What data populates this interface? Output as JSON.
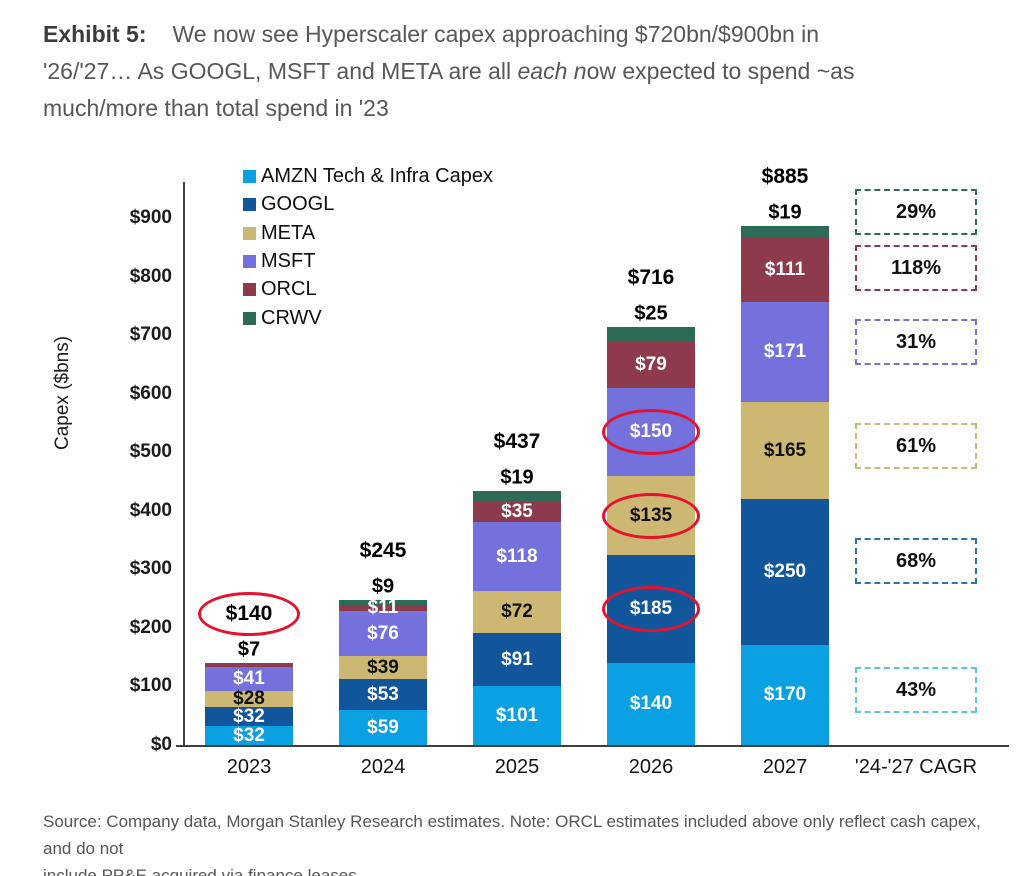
{
  "exhibit": {
    "label": "Exhibit 5:",
    "title_line1": "We now see Hyperscaler capex approaching $720bn/$900bn in",
    "title_line2_pre": "'26/'27… As GOOGL, MSFT and META are all ",
    "title_line2_italic": "each n",
    "title_line2_post": "ow expected to spend ~as",
    "title_line3": "much/more than total spend in '23"
  },
  "footer": {
    "line1": "Source: Company data, Morgan Stanley Research estimates. Note: ORCL estimates included above only reflect cash capex, and do not",
    "line2": "include PP&E acquired via finance leases"
  },
  "chart_data": {
    "type": "bar",
    "stacked": true,
    "ylabel": "Capex ($bns)",
    "ylim": [
      0,
      900
    ],
    "grid": false,
    "legend_position": "top-left-inside",
    "y_ticks": [
      {
        "value": 0,
        "label": "$0"
      },
      {
        "value": 100,
        "label": "$100"
      },
      {
        "value": 200,
        "label": "$200"
      },
      {
        "value": 300,
        "label": "$300"
      },
      {
        "value": 400,
        "label": "$400"
      },
      {
        "value": 500,
        "label": "$500"
      },
      {
        "value": 600,
        "label": "$600"
      },
      {
        "value": 700,
        "label": "$700"
      },
      {
        "value": 800,
        "label": "$800"
      },
      {
        "value": 900,
        "label": "$900"
      }
    ],
    "legend": [
      {
        "series": "AMZN",
        "label": "AMZN Tech & Infra Capex",
        "color": "#0aa0e2"
      },
      {
        "series": "GOOGL",
        "label": "GOOGL",
        "color": "#11569b"
      },
      {
        "series": "META",
        "label": "META",
        "color": "#cdb873"
      },
      {
        "series": "MSFT",
        "label": "MSFT",
        "color": "#7470dc"
      },
      {
        "series": "ORCL",
        "label": "ORCL",
        "color": "#8e3a4d"
      },
      {
        "series": "CRWV",
        "label": "CRWV",
        "color": "#2d6b57"
      }
    ],
    "categories": [
      "2023",
      "2024",
      "2025",
      "2026",
      "2027"
    ],
    "cagr_category": "'24-'27 CAGR",
    "bars": [
      {
        "category": "2023",
        "total_label": "$140",
        "total_circled": true,
        "top_label": "$7",
        "top_label_series": "ORCL",
        "segments": [
          {
            "series": "AMZN",
            "value": 32,
            "label": "$32",
            "text": "#ffffff"
          },
          {
            "series": "GOOGL",
            "value": 32,
            "label": "$32",
            "text": "#ffffff"
          },
          {
            "series": "META",
            "value": 28,
            "label": "$28",
            "text": "#111111"
          },
          {
            "series": "MSFT",
            "value": 41,
            "label": "$41",
            "text": "#ffffff"
          },
          {
            "series": "ORCL",
            "value": 7,
            "label": "",
            "text": "#ffffff"
          }
        ]
      },
      {
        "category": "2024",
        "total_label": "$245",
        "total_circled": false,
        "top_label": "$9",
        "top_label_series": "CRWV",
        "segments": [
          {
            "series": "AMZN",
            "value": 59,
            "label": "$59",
            "text": "#ffffff"
          },
          {
            "series": "GOOGL",
            "value": 53,
            "label": "$53",
            "text": "#ffffff"
          },
          {
            "series": "META",
            "value": 39,
            "label": "$39",
            "text": "#111111"
          },
          {
            "series": "MSFT",
            "value": 76,
            "label": "$76",
            "text": "#ffffff"
          },
          {
            "series": "ORCL",
            "value": 11,
            "label": "$11",
            "text": "#ffffff"
          },
          {
            "series": "CRWV",
            "value": 9,
            "label": "",
            "text": "#ffffff"
          }
        ]
      },
      {
        "category": "2025",
        "total_label": "$437",
        "total_circled": false,
        "top_label": "$19",
        "top_label_series": "CRWV",
        "segments": [
          {
            "series": "AMZN",
            "value": 101,
            "label": "$101",
            "text": "#ffffff"
          },
          {
            "series": "GOOGL",
            "value": 91,
            "label": "$91",
            "text": "#ffffff"
          },
          {
            "series": "META",
            "value": 72,
            "label": "$72",
            "text": "#111111"
          },
          {
            "series": "MSFT",
            "value": 118,
            "label": "$118",
            "text": "#ffffff"
          },
          {
            "series": "ORCL",
            "value": 35,
            "label": "$35",
            "text": "#ffffff"
          },
          {
            "series": "CRWV",
            "value": 19,
            "label": "",
            "text": "#ffffff"
          }
        ]
      },
      {
        "category": "2026",
        "total_label": "$716",
        "total_circled": false,
        "top_label": "$25",
        "top_label_series": "CRWV",
        "segments": [
          {
            "series": "AMZN",
            "value": 140,
            "label": "$140",
            "text": "#ffffff"
          },
          {
            "series": "GOOGL",
            "value": 185,
            "label": "$185",
            "text": "#ffffff",
            "circled": true
          },
          {
            "series": "META",
            "value": 135,
            "label": "$135",
            "text": "#111111",
            "circled": true
          },
          {
            "series": "MSFT",
            "value": 150,
            "label": "$150",
            "text": "#ffffff",
            "circled": true
          },
          {
            "series": "ORCL",
            "value": 79,
            "label": "$79",
            "text": "#ffffff"
          },
          {
            "series": "CRWV",
            "value": 25,
            "label": "",
            "text": "#ffffff"
          }
        ]
      },
      {
        "category": "2027",
        "total_label": "$885",
        "total_circled": false,
        "top_label": "$19",
        "top_label_series": "CRWV",
        "segments": [
          {
            "series": "AMZN",
            "value": 170,
            "label": "$170",
            "text": "#ffffff"
          },
          {
            "series": "GOOGL",
            "value": 250,
            "label": "$250",
            "text": "#ffffff"
          },
          {
            "series": "META",
            "value": 165,
            "label": "$165",
            "text": "#111111"
          },
          {
            "series": "MSFT",
            "value": 171,
            "label": "$171",
            "text": "#ffffff"
          },
          {
            "series": "ORCL",
            "value": 111,
            "label": "$111",
            "text": "#ffffff"
          },
          {
            "series": "CRWV",
            "value": 19,
            "label": "",
            "text": "#ffffff"
          }
        ]
      }
    ],
    "cagr_boxes": [
      {
        "label": "29%",
        "series": "CRWV",
        "color": "#2d6b57"
      },
      {
        "label": "118%",
        "series": "ORCL",
        "color": "#8e3a4d"
      },
      {
        "label": "31%",
        "series": "MSFT",
        "color": "#7470dc"
      },
      {
        "label": "61%",
        "series": "META",
        "color": "#cdb873"
      },
      {
        "label": "68%",
        "series": "GOOGL",
        "color": "#2e74b5"
      },
      {
        "label": "43%",
        "series": "AMZN",
        "color": "#5bc2ec"
      }
    ],
    "annotation_color": "#e8112d"
  }
}
